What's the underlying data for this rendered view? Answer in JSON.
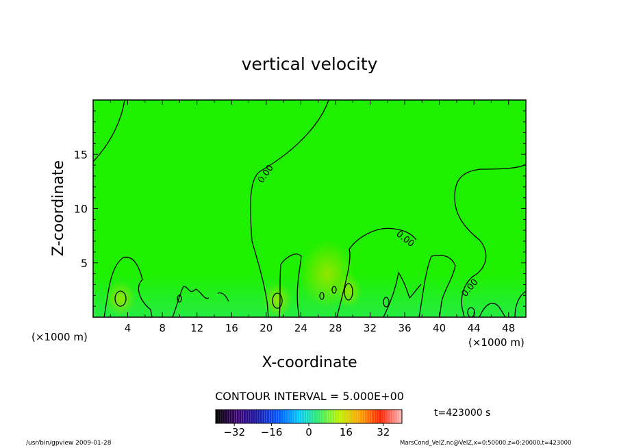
{
  "chart_data": {
    "type": "heatmap",
    "title": "vertical velocity",
    "xlabel": "X-coordinate",
    "ylabel": "Z-coordinate",
    "x_unit_left": "(×1000 m)",
    "x_unit_right": "(×1000 m)",
    "xlim": [
      0,
      50
    ],
    "ylim": [
      0,
      20
    ],
    "x_ticks": [
      "4",
      "8",
      "12",
      "16",
      "20",
      "24",
      "28",
      "32",
      "36",
      "40",
      "44",
      "48"
    ],
    "x_tick_values": [
      4,
      8,
      12,
      16,
      20,
      24,
      28,
      32,
      36,
      40,
      44,
      48
    ],
    "y_ticks": [
      "5",
      "10",
      "15"
    ],
    "y_tick_values": [
      5,
      10,
      15
    ],
    "contour_labels": [
      "0.00",
      "0.00",
      "0.00"
    ],
    "contour_interval": "CONTOUR INTERVAL = 5.000E+00",
    "time_label": "t=423000 s",
    "colorbar": {
      "ticks": [
        "−32",
        "−16",
        "0",
        "16",
        "32"
      ],
      "tick_values": [
        -32,
        -16,
        0,
        16,
        32
      ],
      "range": [
        -40,
        40
      ],
      "colors": [
        "#000000",
        "#3b0070",
        "#1a1aa8",
        "#0055ff",
        "#00c8ff",
        "#33ee66",
        "#bff000",
        "#ffa200",
        "#ff2200",
        "#ffb0b0"
      ]
    },
    "field_color": "#1ff000"
  },
  "footer": {
    "left": "/usr/bin/gpview   2009-01-28",
    "right": "MarsCond_VelZ.nc@VelZ,x=0:50000,z=0:20000,t=423000"
  }
}
